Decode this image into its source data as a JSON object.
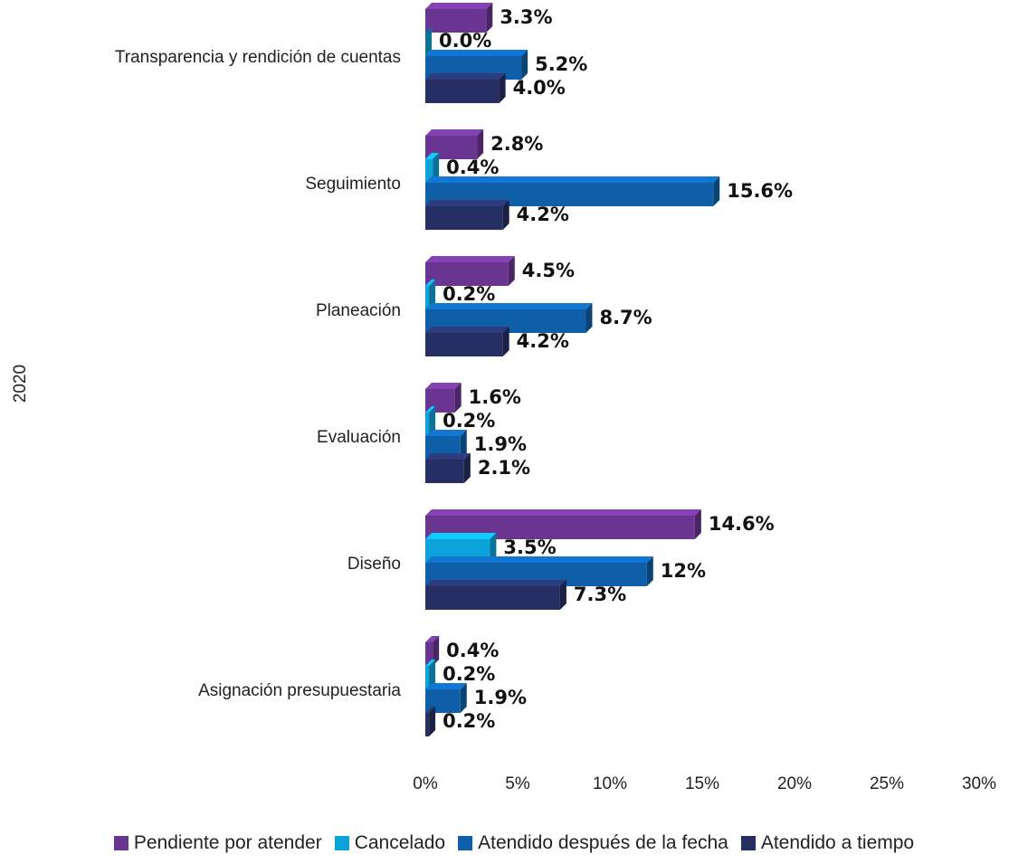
{
  "chart_data": {
    "type": "bar",
    "orientation": "horizontal",
    "ylabel": "2020",
    "categories": [
      "Transparencia y rendición de cuentas",
      "Seguimiento",
      "Planeación",
      "Evaluación",
      "Diseño",
      "Asignación presupuestaria"
    ],
    "series": [
      {
        "name": "Pendiente por atender",
        "color": "#6a3590",
        "values": [
          3.3,
          2.8,
          4.5,
          1.6,
          14.6,
          0.4
        ],
        "labels": [
          "3.3%",
          "2.8%",
          "4.5%",
          "1.6%",
          "14.6%",
          "0.4%"
        ]
      },
      {
        "name": "Cancelado",
        "color": "#0ba3d9",
        "values": [
          0.0,
          0.4,
          0.2,
          0.2,
          3.5,
          0.2
        ],
        "labels": [
          "0.0%",
          "0.4%",
          "0.2%",
          "0.2%",
          "3.5%",
          "0.2%"
        ]
      },
      {
        "name": "Atendido después de la fecha",
        "color": "#0e5fa8",
        "values": [
          5.2,
          15.6,
          8.7,
          1.9,
          12,
          1.9
        ],
        "labels": [
          "5.2%",
          "15.6%",
          "8.7%",
          "1.9%",
          "12%",
          "1.9%"
        ]
      },
      {
        "name": "Atendido a tiempo",
        "color": "#252f63",
        "values": [
          4.0,
          4.2,
          4.2,
          2.1,
          7.3,
          0.2
        ],
        "labels": [
          "4.0%",
          "4.2%",
          "4.2%",
          "2.1%",
          "7.3%",
          "0.2%"
        ]
      }
    ],
    "xlim": [
      0,
      30
    ],
    "x_ticks": [
      "0%",
      "5%",
      "10%",
      "15%",
      "20%",
      "25%",
      "30%"
    ],
    "grid": false,
    "legend_position": "bottom"
  }
}
